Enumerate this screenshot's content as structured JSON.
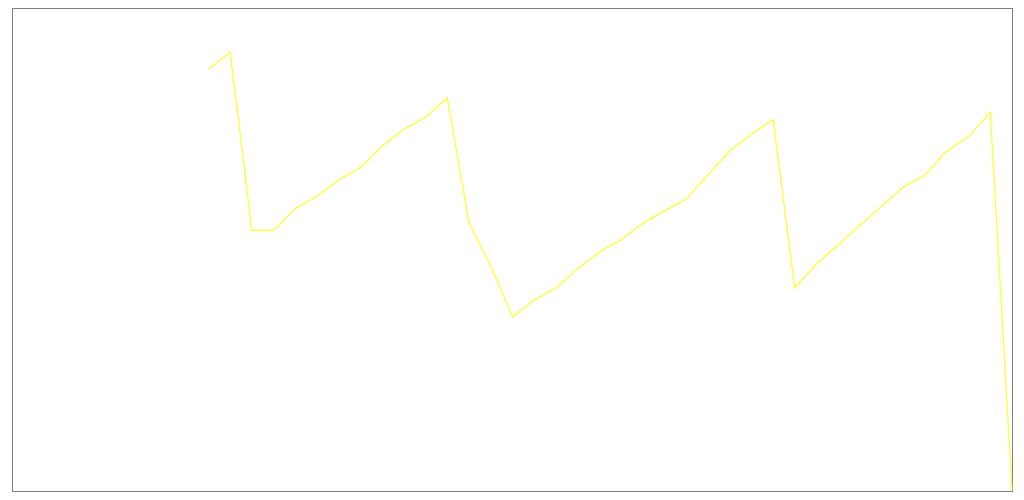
{
  "chart_data": {
    "type": "line",
    "title": "",
    "xlabel": "",
    "ylabel": "",
    "grid": false,
    "legend": "none",
    "xlim": [
      0,
      46
    ],
    "ylim": [
      0,
      100
    ],
    "series": [
      {
        "color": "#ffff33",
        "points": [
          {
            "x": 9,
            "y": 87.5
          },
          {
            "x": 10,
            "y": 91.0
          },
          {
            "x": 11,
            "y": 54.0
          },
          {
            "x": 12,
            "y": 54.0
          },
          {
            "x": 13,
            "y": 58.5
          },
          {
            "x": 14,
            "y": 61.0
          },
          {
            "x": 15,
            "y": 64.5
          },
          {
            "x": 16,
            "y": 67.0
          },
          {
            "x": 17,
            "y": 71.5
          },
          {
            "x": 18,
            "y": 75.0
          },
          {
            "x": 19,
            "y": 77.5
          },
          {
            "x": 20,
            "y": 81.5
          },
          {
            "x": 21,
            "y": 55.5
          },
          {
            "x": 22,
            "y": 46.5
          },
          {
            "x": 23,
            "y": 36.0
          },
          {
            "x": 24,
            "y": 39.5
          },
          {
            "x": 25,
            "y": 42.0
          },
          {
            "x": 26,
            "y": 46.0
          },
          {
            "x": 27,
            "y": 49.5
          },
          {
            "x": 28,
            "y": 52.0
          },
          {
            "x": 29,
            "y": 55.5
          },
          {
            "x": 30,
            "y": 58.0
          },
          {
            "x": 31,
            "y": 60.5
          },
          {
            "x": 32,
            "y": 65.5
          },
          {
            "x": 33,
            "y": 70.5
          },
          {
            "x": 34,
            "y": 74.0
          },
          {
            "x": 35,
            "y": 77.0
          },
          {
            "x": 36,
            "y": 42.0
          },
          {
            "x": 37,
            "y": 47.0
          },
          {
            "x": 38,
            "y": 51.0
          },
          {
            "x": 39,
            "y": 55.0
          },
          {
            "x": 40,
            "y": 59.0
          },
          {
            "x": 41,
            "y": 63.0
          },
          {
            "x": 42,
            "y": 65.5
          },
          {
            "x": 43,
            "y": 70.5
          },
          {
            "x": 44,
            "y": 73.5
          },
          {
            "x": 45,
            "y": 78.5
          },
          {
            "x": 46,
            "y": 0.0
          }
        ]
      }
    ]
  }
}
